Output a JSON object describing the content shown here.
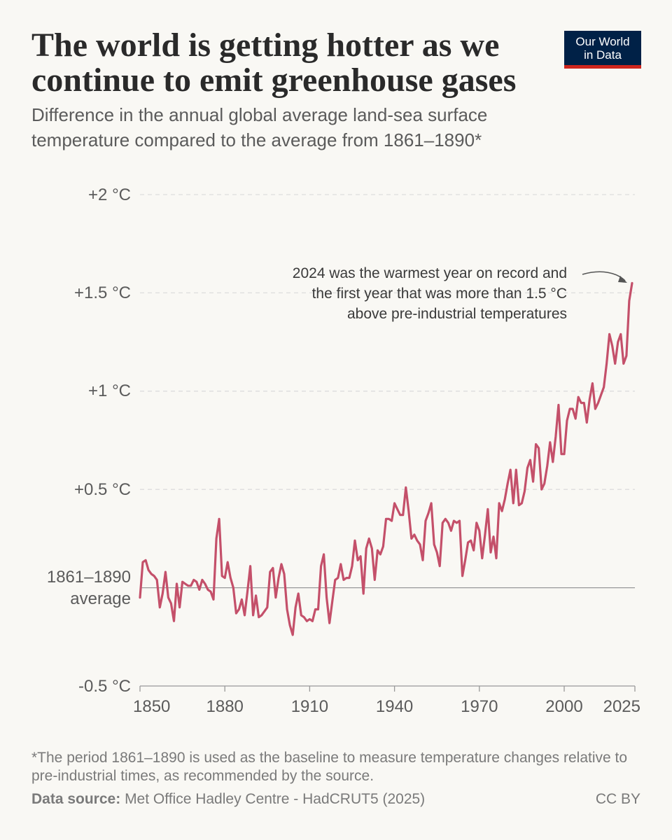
{
  "chart_data": {
    "type": "line",
    "title": "The world is getting hotter as we continue to emit greenhouse gases",
    "subtitle": "Difference in the annual global average land-sea surface temperature compared to the average from 1861–1890*",
    "logo": "Our World in Data",
    "annotation": [
      "2024 was the warmest year on record and",
      "the first year that was more than 1.5 °C",
      "above pre-industrial temperatures"
    ],
    "footnote": "*The period 1861–1890 is used as the baseline to measure temperature changes relative to pre-industrial times, as recommended by the source.",
    "source_label": "Data source:",
    "source": "Met Office Hadley Centre - HadCRUT5 (2025)",
    "license": "CC BY",
    "x": [
      1850,
      1851,
      1852,
      1853,
      1854,
      1855,
      1856,
      1857,
      1858,
      1859,
      1860,
      1861,
      1862,
      1863,
      1864,
      1865,
      1866,
      1867,
      1868,
      1869,
      1870,
      1871,
      1872,
      1873,
      1874,
      1875,
      1876,
      1877,
      1878,
      1879,
      1880,
      1881,
      1882,
      1883,
      1884,
      1885,
      1886,
      1887,
      1888,
      1889,
      1890,
      1891,
      1892,
      1893,
      1894,
      1895,
      1896,
      1897,
      1898,
      1899,
      1900,
      1901,
      1902,
      1903,
      1904,
      1905,
      1906,
      1907,
      1908,
      1909,
      1910,
      1911,
      1912,
      1913,
      1914,
      1915,
      1916,
      1917,
      1918,
      1919,
      1920,
      1921,
      1922,
      1923,
      1924,
      1925,
      1926,
      1927,
      1928,
      1929,
      1930,
      1931,
      1932,
      1933,
      1934,
      1935,
      1936,
      1937,
      1938,
      1939,
      1940,
      1941,
      1942,
      1943,
      1944,
      1945,
      1946,
      1947,
      1948,
      1949,
      1950,
      1951,
      1952,
      1953,
      1954,
      1955,
      1956,
      1957,
      1958,
      1959,
      1960,
      1961,
      1962,
      1963,
      1964,
      1965,
      1966,
      1967,
      1968,
      1969,
      1970,
      1971,
      1972,
      1973,
      1974,
      1975,
      1976,
      1977,
      1978,
      1979,
      1980,
      1981,
      1982,
      1983,
      1984,
      1985,
      1986,
      1987,
      1988,
      1989,
      1990,
      1991,
      1992,
      1993,
      1994,
      1995,
      1996,
      1997,
      1998,
      1999,
      2000,
      2001,
      2002,
      2003,
      2004,
      2005,
      2006,
      2007,
      2008,
      2009,
      2010,
      2011,
      2012,
      2013,
      2014,
      2015,
      2016,
      2017,
      2018,
      2019,
      2020,
      2021,
      2022,
      2023,
      2024
    ],
    "series": [
      {
        "color": "#c4506a",
        "values": [
          -0.05,
          0.13,
          0.14,
          0.09,
          0.07,
          0.06,
          0.04,
          -0.1,
          -0.03,
          0.08,
          -0.05,
          -0.08,
          -0.17,
          0.02,
          -0.1,
          0.03,
          0.02,
          0.01,
          0.01,
          0.04,
          0.03,
          -0.01,
          0.04,
          0.02,
          -0.01,
          -0.02,
          -0.06,
          0.25,
          0.35,
          0.06,
          0.05,
          0.13,
          0.05,
          0.0,
          -0.13,
          -0.11,
          -0.06,
          -0.14,
          -0.02,
          0.11,
          -0.14,
          -0.04,
          -0.15,
          -0.14,
          -0.12,
          -0.1,
          0.08,
          0.1,
          -0.05,
          0.05,
          0.12,
          0.07,
          -0.11,
          -0.19,
          -0.24,
          -0.1,
          -0.03,
          -0.14,
          -0.15,
          -0.17,
          -0.16,
          -0.17,
          -0.11,
          -0.11,
          0.11,
          0.17,
          -0.05,
          -0.18,
          -0.07,
          0.04,
          0.05,
          0.12,
          0.04,
          0.05,
          0.05,
          0.11,
          0.24,
          0.14,
          0.16,
          -0.03,
          0.2,
          0.25,
          0.2,
          0.04,
          0.19,
          0.17,
          0.21,
          0.35,
          0.35,
          0.34,
          0.43,
          0.4,
          0.37,
          0.37,
          0.51,
          0.39,
          0.25,
          0.27,
          0.24,
          0.22,
          0.14,
          0.34,
          0.38,
          0.43,
          0.22,
          0.18,
          0.11,
          0.33,
          0.35,
          0.33,
          0.29,
          0.34,
          0.33,
          0.34,
          0.06,
          0.14,
          0.23,
          0.24,
          0.19,
          0.33,
          0.29,
          0.15,
          0.27,
          0.4,
          0.18,
          0.26,
          0.15,
          0.43,
          0.39,
          0.45,
          0.53,
          0.6,
          0.43,
          0.6,
          0.42,
          0.43,
          0.49,
          0.61,
          0.65,
          0.54,
          0.73,
          0.71,
          0.5,
          0.53,
          0.62,
          0.74,
          0.64,
          0.77,
          0.93,
          0.68,
          0.68,
          0.85,
          0.91,
          0.91,
          0.86,
          0.97,
          0.94,
          0.94,
          0.84,
          0.96,
          1.04,
          0.91,
          0.94,
          0.98,
          1.02,
          1.14,
          1.29,
          1.23,
          1.14,
          1.25,
          1.29,
          1.14,
          1.18,
          1.46,
          1.55
        ]
      }
    ],
    "xlim": [
      1850,
      2025
    ],
    "xticks": [
      1850,
      1880,
      1910,
      1940,
      1970,
      2000,
      2025
    ],
    "ylim": [
      -0.5,
      2
    ],
    "yticks": [
      {
        "value": -0.5,
        "label": "-0.5 °C"
      },
      {
        "value": 0,
        "label": "1861–1890 average"
      },
      {
        "value": 0.5,
        "label": "+0.5 °C"
      },
      {
        "value": 1,
        "label": "+1 °C"
      },
      {
        "value": 1.5,
        "label": "+1.5 °C"
      },
      {
        "value": 2,
        "label": "+2 °C"
      }
    ],
    "grid": true
  }
}
